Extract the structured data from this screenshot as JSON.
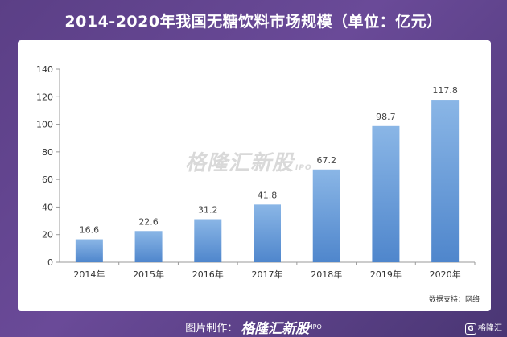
{
  "title": "2014-2020年我国无糖饮料市场规模（单位：亿元）",
  "source": "数据支持：网络",
  "watermark": {
    "brand": "格隆汇新股",
    "sub": "IPO"
  },
  "footer": {
    "label": "图片制作：",
    "brand": "格隆汇新股",
    "sub": "IPO"
  },
  "corner_logo": {
    "mark": "G",
    "text": "格隆汇"
  },
  "colors": {
    "bar_top": "#8ab6e6",
    "bar_bottom": "#4f86cc",
    "axis": "#9a9a9a",
    "background": "#5b3f86"
  },
  "chart_data": {
    "type": "bar",
    "categories": [
      "2014年",
      "2015年",
      "2016年",
      "2017年",
      "2018年",
      "2019年",
      "2020年"
    ],
    "values": [
      16.6,
      22.6,
      31.2,
      41.8,
      67.2,
      98.7,
      117.8
    ],
    "value_labels": [
      "16.6",
      "22.6",
      "31.2",
      "41.8",
      "67.2",
      "98.7",
      "117.8"
    ],
    "yticks": [
      "0",
      "20",
      "40",
      "60",
      "80",
      "100",
      "120",
      "140"
    ],
    "ylim": [
      0,
      140
    ],
    "grid": false,
    "legend": "none"
  }
}
